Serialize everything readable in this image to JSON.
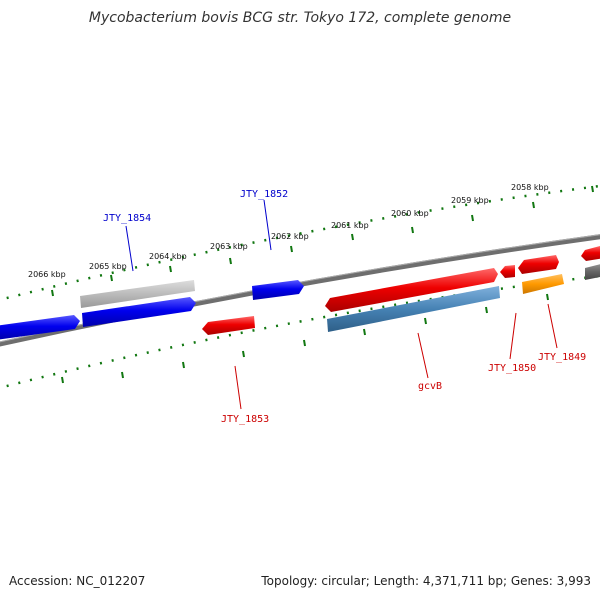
{
  "title": "Mycobacterium bovis BCG str. Tokyo 172, complete genome",
  "footer": {
    "accession": "Accession: NC_012207",
    "stats": "Topology: circular; Length: 4,371,711 bp; Genes: 3,993"
  },
  "scale": {
    "ticks": [
      {
        "label": "2066 kbp"
      },
      {
        "label": "2065 kbp"
      },
      {
        "label": "2064 kbp"
      },
      {
        "label": "2063 kbp"
      },
      {
        "label": "2062 kbp"
      },
      {
        "label": "2061 kbp"
      },
      {
        "label": "2060 kbp"
      },
      {
        "label": "2059 kbp"
      },
      {
        "label": "2058 kbp"
      }
    ]
  },
  "genes": [
    {
      "label": "JTY_1854",
      "color": "#0000cc"
    },
    {
      "label": "JTY_1852",
      "color": "#0000cc"
    },
    {
      "label": "JTY_1853",
      "color": "#cc0000"
    },
    {
      "label": "gcvB",
      "color": "#cc0000"
    },
    {
      "label": "JTY_1850",
      "color": "#cc0000"
    },
    {
      "label": "JTY_1849",
      "color": "#cc0000"
    }
  ],
  "colors": {
    "forward_gene": "#0000ee",
    "reverse_gene": "#ee0000",
    "pseudogene": "#bbbbbb",
    "rna": "#4682b4",
    "orange_feature": "#ff9900",
    "backbone": "#777777",
    "tick": "#117711"
  }
}
